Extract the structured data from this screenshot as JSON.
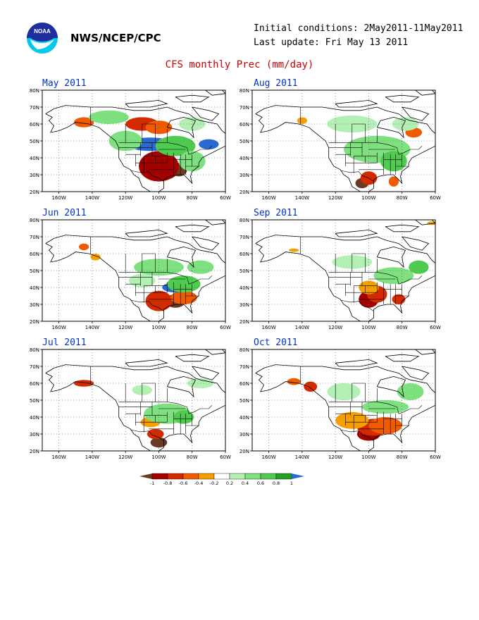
{
  "header": {
    "org": "NWS/NCEP/CPC",
    "initial_conditions": "Initial conditions: 2May2011-11May2011",
    "last_update": "Last update: Fri May 13 2011",
    "title": "CFS monthly Prec (mm/day)",
    "logo_text": "NOAA"
  },
  "axes": {
    "lat_labels": [
      "80N",
      "70N",
      "60N",
      "50N",
      "40N",
      "30N",
      "20N"
    ],
    "lon_labels": [
      "160W",
      "140W",
      "120W",
      "100W",
      "80W",
      "60W"
    ]
  },
  "colors": {
    "-1": "#6b3a22",
    "-0.8": "#a50000",
    "-0.6": "#d42a00",
    "-0.4": "#f05a00",
    "-0.2": "#f5a000",
    "0.2": "#b4f0b4",
    "0.4": "#7ee07e",
    "0.6": "#4fcc4f",
    "0.8": "#22a022",
    "1": "#2a6ad0"
  },
  "panels": [
    {
      "title": "May 2011",
      "blobs": [
        {
          "lon": -97,
          "lat": 33,
          "rx": 9,
          "ry": 6,
          "v": -1
        },
        {
          "lon": -88,
          "lat": 33,
          "rx": 5,
          "ry": 4,
          "v": -1
        },
        {
          "lon": -100,
          "lat": 35,
          "rx": 12,
          "ry": 9,
          "v": -0.8
        },
        {
          "lon": -110,
          "lat": 60,
          "rx": 10,
          "ry": 4,
          "v": -0.6
        },
        {
          "lon": -100,
          "lat": 58,
          "rx": 8,
          "ry": 4,
          "v": -0.4
        },
        {
          "lon": -145,
          "lat": 61,
          "rx": 6,
          "ry": 3,
          "v": -0.4
        },
        {
          "lon": -105,
          "lat": 48,
          "rx": 14,
          "ry": 4,
          "v": 1
        },
        {
          "lon": -70,
          "lat": 48,
          "rx": 6,
          "ry": 3,
          "v": 1
        },
        {
          "lon": -90,
          "lat": 47,
          "rx": 12,
          "ry": 6,
          "v": 0.6
        },
        {
          "lon": -120,
          "lat": 50,
          "rx": 10,
          "ry": 6,
          "v": 0.4
        },
        {
          "lon": -80,
          "lat": 38,
          "rx": 8,
          "ry": 6,
          "v": 0.4
        },
        {
          "lon": -130,
          "lat": 64,
          "rx": 12,
          "ry": 4,
          "v": 0.4
        },
        {
          "lon": -80,
          "lat": 60,
          "rx": 8,
          "ry": 4,
          "v": 0.2
        }
      ]
    },
    {
      "title": "Aug 2011",
      "blobs": [
        {
          "lon": -104,
          "lat": 25,
          "rx": 4,
          "ry": 3,
          "v": -1
        },
        {
          "lon": -100,
          "lat": 28,
          "rx": 5,
          "ry": 4,
          "v": -0.6
        },
        {
          "lon": -73,
          "lat": 55,
          "rx": 5,
          "ry": 3,
          "v": -0.4
        },
        {
          "lon": -85,
          "lat": 26,
          "rx": 3,
          "ry": 3,
          "v": -0.4
        },
        {
          "lon": -140,
          "lat": 62,
          "rx": 3,
          "ry": 2,
          "v": -0.2
        },
        {
          "lon": -95,
          "lat": 45,
          "rx": 20,
          "ry": 8,
          "v": 0.4
        },
        {
          "lon": -85,
          "lat": 38,
          "rx": 8,
          "ry": 6,
          "v": 0.6
        },
        {
          "lon": -110,
          "lat": 60,
          "rx": 15,
          "ry": 5,
          "v": 0.2
        },
        {
          "lon": -78,
          "lat": 60,
          "rx": 8,
          "ry": 4,
          "v": 0.2
        }
      ]
    },
    {
      "title": "Jun 2011",
      "blobs": [
        {
          "lon": -90,
          "lat": 32,
          "rx": 6,
          "ry": 4,
          "v": -1
        },
        {
          "lon": -100,
          "lat": 32,
          "rx": 8,
          "ry": 6,
          "v": -0.6
        },
        {
          "lon": -85,
          "lat": 34,
          "rx": 8,
          "ry": 4,
          "v": -0.4
        },
        {
          "lon": -145,
          "lat": 64,
          "rx": 3,
          "ry": 2,
          "v": -0.4
        },
        {
          "lon": -138,
          "lat": 58,
          "rx": 3,
          "ry": 2,
          "v": -0.2
        },
        {
          "lon": -90,
          "lat": 40,
          "rx": 8,
          "ry": 3,
          "v": 1
        },
        {
          "lon": -85,
          "lat": 42,
          "rx": 10,
          "ry": 5,
          "v": 0.6
        },
        {
          "lon": -100,
          "lat": 52,
          "rx": 15,
          "ry": 5,
          "v": 0.4
        },
        {
          "lon": -75,
          "lat": 52,
          "rx": 8,
          "ry": 4,
          "v": 0.4
        },
        {
          "lon": -110,
          "lat": 44,
          "rx": 8,
          "ry": 4,
          "v": 0.2
        }
      ]
    },
    {
      "title": "Sep 2011",
      "blobs": [
        {
          "lon": -100,
          "lat": 33,
          "rx": 6,
          "ry": 5,
          "v": -0.8
        },
        {
          "lon": -95,
          "lat": 36,
          "rx": 6,
          "ry": 5,
          "v": -0.6
        },
        {
          "lon": -82,
          "lat": 33,
          "rx": 4,
          "ry": 3,
          "v": -0.6
        },
        {
          "lon": -100,
          "lat": 40,
          "rx": 6,
          "ry": 4,
          "v": -0.2
        },
        {
          "lon": -145,
          "lat": 62,
          "rx": 3,
          "ry": 1,
          "v": -0.2
        },
        {
          "lon": -62,
          "lat": 78,
          "rx": 3,
          "ry": 1,
          "v": -0.2
        },
        {
          "lon": -110,
          "lat": 55,
          "rx": 12,
          "ry": 4,
          "v": 0.2
        },
        {
          "lon": -85,
          "lat": 47,
          "rx": 12,
          "ry": 5,
          "v": 0.4
        },
        {
          "lon": -70,
          "lat": 52,
          "rx": 6,
          "ry": 4,
          "v": 0.6
        }
      ]
    },
    {
      "title": "Jul 2011",
      "blobs": [
        {
          "lon": -100,
          "lat": 25,
          "rx": 5,
          "ry": 3,
          "v": -1
        },
        {
          "lon": -102,
          "lat": 30,
          "rx": 5,
          "ry": 3,
          "v": -0.6
        },
        {
          "lon": -145,
          "lat": 60,
          "rx": 6,
          "ry": 2,
          "v": -0.6
        },
        {
          "lon": -105,
          "lat": 37,
          "rx": 6,
          "ry": 3,
          "v": -0.2
        },
        {
          "lon": -95,
          "lat": 42,
          "rx": 14,
          "ry": 6,
          "v": 0.4
        },
        {
          "lon": -85,
          "lat": 40,
          "rx": 6,
          "ry": 4,
          "v": 0.6
        },
        {
          "lon": -75,
          "lat": 60,
          "rx": 8,
          "ry": 3,
          "v": 0.2
        },
        {
          "lon": -110,
          "lat": 56,
          "rx": 6,
          "ry": 3,
          "v": 0.2
        }
      ]
    },
    {
      "title": "Oct 2011",
      "blobs": [
        {
          "lon": -100,
          "lat": 30,
          "rx": 7,
          "ry": 4,
          "v": -0.8
        },
        {
          "lon": -97,
          "lat": 34,
          "rx": 10,
          "ry": 5,
          "v": -0.6
        },
        {
          "lon": -90,
          "lat": 35,
          "rx": 10,
          "ry": 5,
          "v": -0.4
        },
        {
          "lon": -135,
          "lat": 58,
          "rx": 4,
          "ry": 3,
          "v": -0.6
        },
        {
          "lon": -110,
          "lat": 38,
          "rx": 10,
          "ry": 5,
          "v": -0.2
        },
        {
          "lon": -145,
          "lat": 61,
          "rx": 4,
          "ry": 2,
          "v": -0.4
        },
        {
          "lon": -90,
          "lat": 46,
          "rx": 14,
          "ry": 4,
          "v": 0.4
        },
        {
          "lon": -115,
          "lat": 55,
          "rx": 10,
          "ry": 5,
          "v": 0.2
        },
        {
          "lon": -75,
          "lat": 55,
          "rx": 8,
          "ry": 5,
          "v": 0.4
        }
      ]
    }
  ],
  "colorbar": {
    "labels": [
      "-1",
      "-0.8",
      "-0.6",
      "-0.4",
      "-0.2",
      "0.2",
      "0.4",
      "0.6",
      "0.8",
      "1"
    ]
  }
}
